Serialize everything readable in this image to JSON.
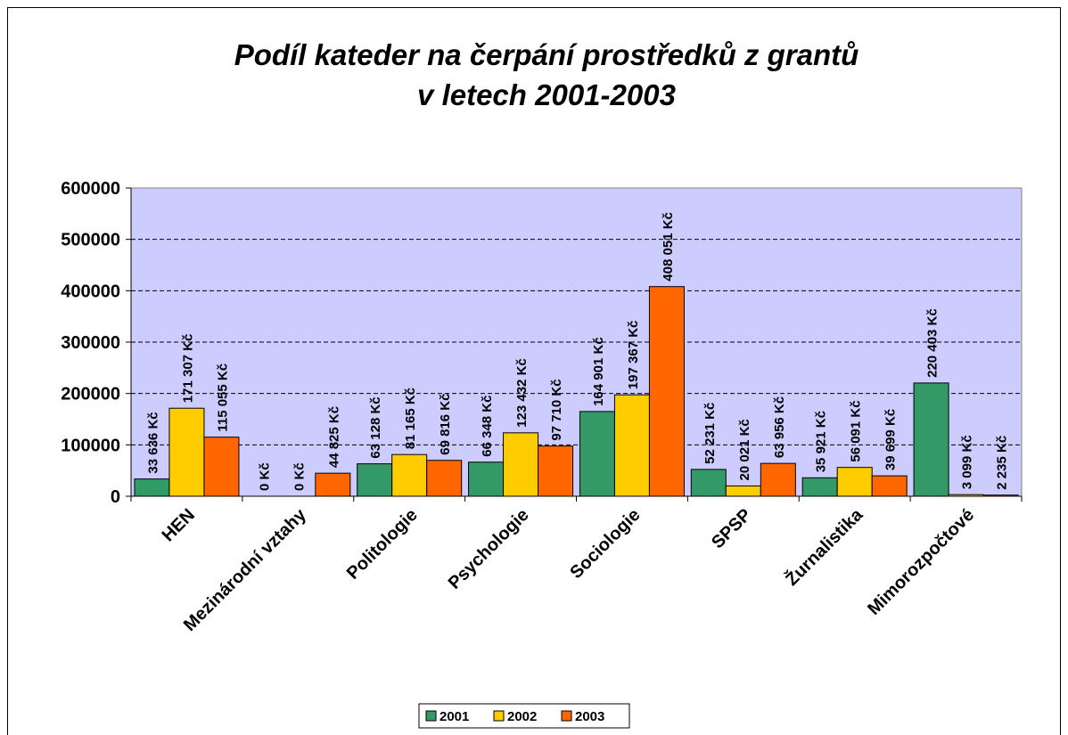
{
  "chart_data": {
    "type": "bar",
    "title": "Podíl kateder na čerpání prostředků z grantů",
    "subtitle": "v letech 2001-2003",
    "categories": [
      "HEN",
      "Mezinárodní vztahy",
      "Politologie",
      "Psychologie",
      "Sociologie",
      "SPSP",
      "Žurnalistika",
      "Mimorozpočtové"
    ],
    "series": [
      {
        "name": "2001",
        "color": "#339966",
        "values": [
          33636,
          0,
          63128,
          66348,
          164901,
          52231,
          35921,
          220403
        ],
        "value_labels": [
          "33 636 Kč",
          "0 Kč",
          "63 128 Kč",
          "66 348 Kč",
          "164 901 Kč",
          "52 231 Kč",
          "35 921 Kč",
          "220 403 Kč"
        ]
      },
      {
        "name": "2002",
        "color": "#ffcc00",
        "values": [
          171307,
          0,
          81165,
          123432,
          197367,
          20021,
          56091,
          3099
        ],
        "value_labels": [
          "171 307 Kč",
          "0 Kč",
          "81 165 Kč",
          "123 432 Kč",
          "197 367 Kč",
          "20 021 Kč",
          "56 091 Kč",
          "3 099 Kč"
        ]
      },
      {
        "name": "2003",
        "color": "#ff6600",
        "values": [
          115055,
          44825,
          69816,
          97710,
          408051,
          63956,
          39699,
          2235
        ],
        "value_labels": [
          "115 055 Kč",
          "44 825 Kč",
          "69 816 Kč",
          "97 710 Kč",
          "408 051 Kč",
          "63 956 Kč",
          "39 699 Kč",
          "2 235 Kč"
        ]
      }
    ],
    "ylim": [
      0,
      600000
    ],
    "yticks": [
      0,
      100000,
      200000,
      300000,
      400000,
      500000,
      600000
    ],
    "grid": true,
    "plot_background": "#ccccff",
    "legend": "bottom"
  }
}
